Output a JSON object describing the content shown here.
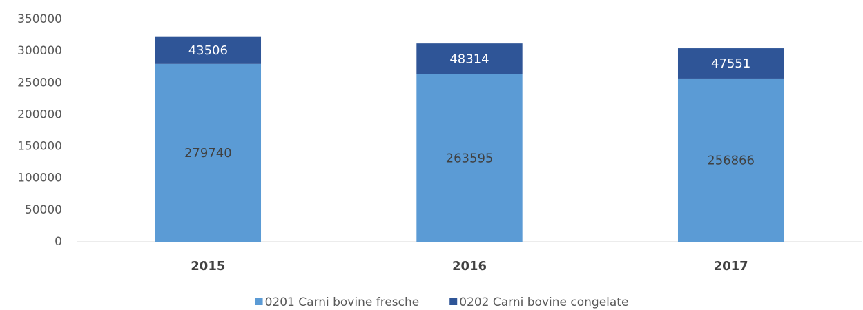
{
  "chart_data": {
    "type": "stacked-bar",
    "categories": [
      "2015",
      "2016",
      "2017"
    ],
    "series": [
      {
        "name": "0201 Carni bovine fresche",
        "color": "#5b9bd5",
        "values": [
          279740,
          263595,
          256866
        ]
      },
      {
        "name": "0202 Carni bovine congelate",
        "color": "#2f5597",
        "values": [
          43506,
          48314,
          47551
        ]
      }
    ],
    "ylim": [
      0,
      350000
    ],
    "yticks": [
      0,
      50000,
      100000,
      150000,
      200000,
      250000,
      300000,
      350000
    ],
    "grid": false,
    "legend": "bottom"
  }
}
